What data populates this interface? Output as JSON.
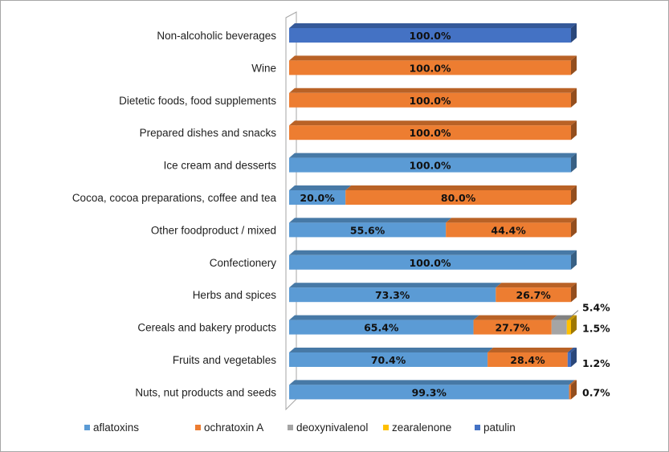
{
  "chart_data": {
    "type": "bar",
    "orientation": "horizontal",
    "stacked": "100%",
    "style": "3d",
    "title": "",
    "xlabel": "",
    "ylabel": "",
    "xlim": [
      0,
      100
    ],
    "grid": false,
    "legend_position": "bottom",
    "categories": [
      "Non-alcoholic beverages",
      "Wine",
      "Dietetic foods, food supplements ",
      "Prepared dishes and snacks",
      "Ice cream and desserts",
      "Cocoa, cocoa preparations, coffee and tea",
      "Other foodproduct / mixed",
      "Confectionery",
      "Herbs and spices",
      "Cereals and bakery products",
      "Fruits and vegetables",
      "Nuts, nut products and seeds"
    ],
    "series": [
      {
        "name": "aflatoxins",
        "color": "#5b9bd5",
        "values": [
          0,
          0,
          0,
          0,
          100.0,
          20.0,
          55.6,
          100.0,
          73.3,
          65.4,
          70.4,
          99.3
        ],
        "labels": [
          "",
          "",
          "",
          "",
          "100.0%",
          "20.0%",
          "55.6%",
          "100.0%",
          "73.3%",
          "65.4%",
          "70.4%",
          "99.3%"
        ]
      },
      {
        "name": "ochratoxin A",
        "color": "#ed7d31",
        "values": [
          0,
          100.0,
          100.0,
          100.0,
          0,
          80.0,
          44.4,
          0,
          26.7,
          27.7,
          28.4,
          0.7
        ],
        "labels": [
          "",
          "100.0%",
          "100.0%",
          "100.0%",
          "",
          "80.0%",
          "44.4%",
          "",
          "26.7%",
          "27.7%",
          "28.4%",
          "0.7%"
        ]
      },
      {
        "name": "deoxynivalenol",
        "color": "#a5a5a5",
        "values": [
          0,
          0,
          0,
          0,
          0,
          0,
          0,
          0,
          0,
          5.4,
          0,
          0
        ],
        "labels": [
          "",
          "",
          "",
          "",
          "",
          "",
          "",
          "",
          "",
          "5.4%",
          "",
          ""
        ]
      },
      {
        "name": "zearalenone",
        "color": "#ffc000",
        "values": [
          0,
          0,
          0,
          0,
          0,
          0,
          0,
          0,
          0,
          1.5,
          0,
          0
        ],
        "labels": [
          "",
          "",
          "",
          "",
          "",
          "",
          "",
          "",
          "",
          "1.5%",
          "",
          ""
        ]
      },
      {
        "name": "patulin",
        "color": "#4472c4",
        "values": [
          100.0,
          0,
          0,
          0,
          0,
          0,
          0,
          0,
          0,
          0,
          1.2,
          0
        ],
        "labels": [
          "100.0%",
          "",
          "",
          "",
          "",
          "",
          "",
          "",
          "",
          "",
          "1.2%",
          ""
        ]
      }
    ],
    "outside_labels": [
      {
        "category": "Cereals and bakery products",
        "series": "deoxynivalenol",
        "text": "5.4%",
        "leader_line": true
      },
      {
        "category": "Cereals and bakery products",
        "series": "zearalenone",
        "text": "1.5%",
        "leader_line": false
      },
      {
        "category": "Fruits and vegetables",
        "series": "patulin",
        "text": "1.2%",
        "leader_line": false
      },
      {
        "category": "Nuts, nut products and seeds",
        "series": "ochratoxin A",
        "text": "0.7%",
        "leader_line": false
      }
    ]
  }
}
